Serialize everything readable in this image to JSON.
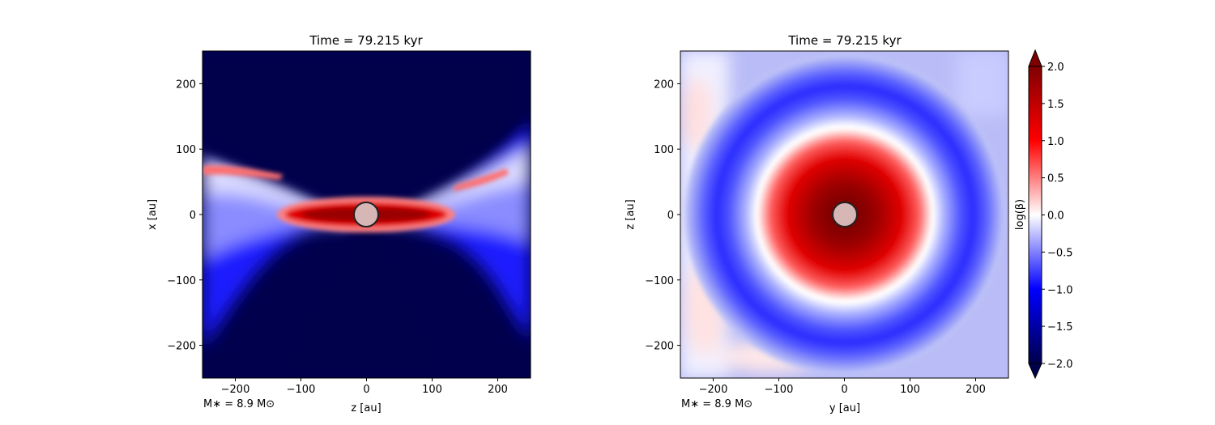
{
  "chart_data": [
    {
      "type": "heatmap",
      "title": "Time = 79.215 kyr",
      "xlabel": "z [au]",
      "ylabel": "x [au]",
      "annotation": "M∗ = 8.9 M⊙",
      "xlim": [
        -250,
        250
      ],
      "ylim": [
        -250,
        250
      ],
      "xticks": [
        -200,
        -100,
        0,
        100,
        200
      ],
      "yticks": [
        -200,
        -100,
        0,
        100,
        200
      ],
      "xticklabels": [
        "−200",
        "−100",
        "0",
        "100",
        "200"
      ],
      "yticklabels": [
        "−200",
        "−100",
        "0",
        "100",
        "200"
      ],
      "view": "edge-on disk: strong positive log(beta) along the midplane, very negative in polar cones",
      "sink": {
        "x": 0,
        "y": 0,
        "radius_au": 18
      }
    },
    {
      "type": "heatmap",
      "title": "Time = 79.215 kyr",
      "xlabel": "y [au]",
      "ylabel": "z [au]",
      "annotation": "M∗ = 8.9 M⊙",
      "xlim": [
        -250,
        250
      ],
      "ylim": [
        -250,
        250
      ],
      "xticks": [
        -200,
        -100,
        0,
        100,
        200
      ],
      "yticks": [
        -200,
        -100,
        0,
        100,
        200
      ],
      "xticklabels": [
        "−200",
        "−100",
        "0",
        "100",
        "200"
      ],
      "yticklabels": [
        "−200",
        "−100",
        "0",
        "100",
        "200"
      ],
      "view": "face-on disk: positive log(beta) core within ~100 au, ring of negative values around it",
      "sink": {
        "x": 0,
        "y": 0,
        "radius_au": 18
      }
    }
  ],
  "colorbar": {
    "label": "log(β)",
    "range": [
      -2.0,
      2.0
    ],
    "extend": "both",
    "levels": [
      -2.0,
      -1.5,
      -1.0,
      -0.5,
      0.0,
      0.5,
      1.0,
      1.5,
      2.0
    ],
    "ticklabels": [
      "−2.0",
      "−1.5",
      "−1.0",
      "−0.5",
      "0.0",
      "0.5",
      "1.0",
      "1.5",
      "2.0"
    ],
    "colormap": "seismic",
    "colors": [
      "#00004c",
      "#0000ff",
      "#ffffff",
      "#ff0000",
      "#7f0000"
    ]
  }
}
